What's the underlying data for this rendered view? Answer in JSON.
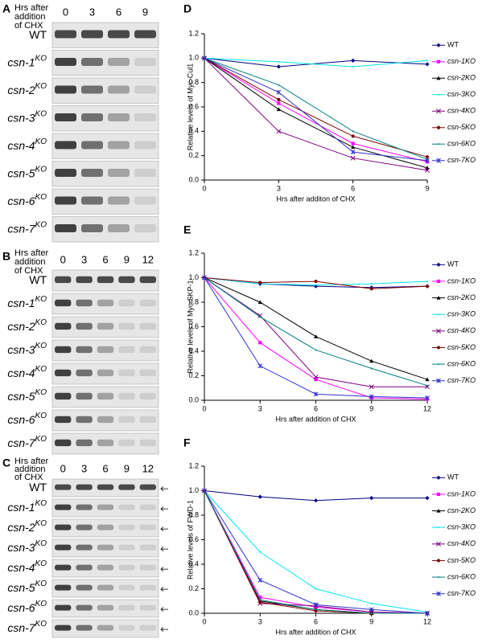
{
  "blots": [
    {
      "panel": "A",
      "header": [
        "Hrs after",
        "addition",
        "of CHX"
      ],
      "timepoints": [
        "0",
        "3",
        "6",
        "9"
      ],
      "rows": [
        {
          "name": "WT"
        },
        {
          "name": "csn-1",
          "sup": "KO"
        },
        {
          "name": "csn-2",
          "sup": "KO"
        },
        {
          "name": "csn-3",
          "sup": "KO"
        },
        {
          "name": "csn-4",
          "sup": "KO"
        },
        {
          "name": "csn-5",
          "sup": "KO"
        },
        {
          "name": "csn-6",
          "sup": "KO"
        },
        {
          "name": "csn-7",
          "sup": "KO"
        }
      ]
    },
    {
      "panel": "B",
      "header": [
        "Hrs after",
        "addition",
        "of CHX"
      ],
      "timepoints": [
        "0",
        "3",
        "6",
        "9",
        "12"
      ],
      "rows": [
        {
          "name": "WT"
        },
        {
          "name": "csn-1",
          "sup": "KO"
        },
        {
          "name": "csn-2",
          "sup": "KO"
        },
        {
          "name": "csn-3",
          "sup": "KO"
        },
        {
          "name": "csn-4",
          "sup": "KO"
        },
        {
          "name": "csn-5",
          "sup": "KO"
        },
        {
          "name": "csn-6",
          "sup": "KO"
        },
        {
          "name": "csn-7",
          "sup": "KO"
        }
      ]
    },
    {
      "panel": "C",
      "header": [
        "Hrs after",
        "addition",
        "of CHX"
      ],
      "timepoints": [
        "0",
        "3",
        "6",
        "9",
        "12"
      ],
      "rows": [
        {
          "name": "WT"
        },
        {
          "name": "csn-1",
          "sup": "KO"
        },
        {
          "name": "csn-2",
          "sup": "KO"
        },
        {
          "name": "csn-3",
          "sup": "KO"
        },
        {
          "name": "csn-4",
          "sup": "KO"
        },
        {
          "name": "csn-5",
          "sup": "KO"
        },
        {
          "name": "csn-6",
          "sup": "KO"
        },
        {
          "name": "csn-7",
          "sup": "KO"
        }
      ]
    }
  ],
  "chart_data": [
    {
      "type": "line",
      "panel": "D",
      "ylabel": "Relative levels of Myc-Cul1",
      "xlabel": "Hrs after additon of CHX",
      "x": [
        0,
        3,
        6,
        9
      ],
      "xlim": [
        0,
        9
      ],
      "xticks": [
        0,
        3,
        6,
        9
      ],
      "ylim": [
        0,
        1.2
      ],
      "yticks": [
        {
          "value": 0,
          "label": "0.0"
        },
        0.2,
        0.4,
        0.6,
        0.8,
        {
          "value": 1,
          "label": "1.0"
        },
        1.2
      ],
      "series": [
        {
          "name": "WT",
          "color": "#000080",
          "marker": "diamond",
          "values": [
            1.0,
            0.93,
            0.98,
            0.95
          ]
        },
        {
          "name": "csn-1KO",
          "color": "#ff00ff",
          "marker": "square",
          "values": [
            1.0,
            0.63,
            0.3,
            0.15
          ]
        },
        {
          "name": "csn-2KO",
          "color": "#000000",
          "marker": "triangle",
          "values": [
            1.0,
            0.58,
            0.27,
            0.1
          ]
        },
        {
          "name": "csn-3KO",
          "color": "#00e5ee",
          "marker": "none",
          "values": [
            1.0,
            0.97,
            0.93,
            0.98
          ]
        },
        {
          "name": "csn-4KO",
          "color": "#800080",
          "marker": "x",
          "values": [
            1.0,
            0.4,
            0.18,
            0.08
          ]
        },
        {
          "name": "csn-5KO",
          "color": "#800000",
          "marker": "circle",
          "values": [
            1.0,
            0.66,
            0.36,
            0.19
          ]
        },
        {
          "name": "csn-6KO",
          "color": "#008080",
          "marker": "none",
          "values": [
            1.0,
            0.78,
            0.4,
            0.17
          ]
        },
        {
          "name": "csn-7KO",
          "color": "#3333cc",
          "marker": "star",
          "values": [
            1.0,
            0.72,
            0.23,
            0.16
          ]
        }
      ]
    },
    {
      "type": "line",
      "panel": "E",
      "ylabel": "Relative levels of Myc-SKP-1",
      "xlabel": "Hrs after addition of CHX",
      "x": [
        0,
        3,
        6,
        9,
        12
      ],
      "xlim": [
        0,
        12
      ],
      "xticks": [
        0,
        3,
        6,
        9,
        12
      ],
      "ylim": [
        0,
        1.2
      ],
      "yticks": [
        {
          "value": 0,
          "label": "0.0"
        },
        0.2,
        0.4,
        0.6,
        0.8,
        {
          "value": 1,
          "label": "1.0"
        },
        1.2
      ],
      "series": [
        {
          "name": "WT",
          "color": "#000080",
          "marker": "diamond",
          "values": [
            1.0,
            0.95,
            0.93,
            0.92,
            0.93
          ]
        },
        {
          "name": "csn-1KO",
          "color": "#ff00ff",
          "marker": "square",
          "values": [
            1.0,
            0.47,
            0.17,
            0.02,
            0.01
          ]
        },
        {
          "name": "csn-2KO",
          "color": "#000000",
          "marker": "triangle",
          "values": [
            1.0,
            0.8,
            0.52,
            0.32,
            0.17
          ]
        },
        {
          "name": "csn-3KO",
          "color": "#00e5ee",
          "marker": "none",
          "values": [
            1.0,
            0.95,
            0.94,
            0.95,
            0.97
          ]
        },
        {
          "name": "csn-4KO",
          "color": "#800080",
          "marker": "x",
          "values": [
            1.0,
            0.69,
            0.19,
            0.11,
            0.11
          ]
        },
        {
          "name": "csn-5KO",
          "color": "#800000",
          "marker": "circle",
          "values": [
            1.0,
            0.96,
            0.97,
            0.91,
            0.93
          ]
        },
        {
          "name": "csn-6KO",
          "color": "#008080",
          "marker": "none",
          "values": [
            1.0,
            0.68,
            0.41,
            0.26,
            0.12
          ]
        },
        {
          "name": "csn-7KO",
          "color": "#3333cc",
          "marker": "star",
          "values": [
            1.0,
            0.28,
            0.05,
            0.03,
            0.02
          ]
        }
      ]
    },
    {
      "type": "line",
      "panel": "F",
      "ylabel": "Relative levels of FWD-1",
      "xlabel": "Hrs after addition of CHX",
      "x": [
        0,
        3,
        6,
        9,
        12
      ],
      "xlim": [
        0,
        12
      ],
      "xticks": [
        0,
        3,
        6,
        9,
        12
      ],
      "ylim": [
        0,
        1.2
      ],
      "yticks": [
        {
          "value": 0,
          "label": "0.0"
        },
        0.2,
        0.4,
        0.6,
        0.8,
        {
          "value": 1,
          "label": "1.0"
        },
        1.2
      ],
      "series": [
        {
          "name": "WT",
          "color": "#000080",
          "marker": "diamond",
          "values": [
            1.0,
            0.95,
            0.92,
            0.94,
            0.94
          ]
        },
        {
          "name": "csn-1KO",
          "color": "#ff00ff",
          "marker": "square",
          "values": [
            1.0,
            0.13,
            0.05,
            0.01,
            0.0
          ]
        },
        {
          "name": "csn-2KO",
          "color": "#000000",
          "marker": "triangle",
          "values": [
            1.0,
            0.1,
            0.03,
            0.0,
            0.0
          ]
        },
        {
          "name": "csn-3KO",
          "color": "#00e5ee",
          "marker": "none",
          "values": [
            1.0,
            0.5,
            0.2,
            0.08,
            0.01
          ]
        },
        {
          "name": "csn-4KO",
          "color": "#800080",
          "marker": "x",
          "values": [
            1.0,
            0.08,
            0.06,
            0.01,
            0.0
          ]
        },
        {
          "name": "csn-5KO",
          "color": "#800000",
          "marker": "circle",
          "values": [
            1.0,
            0.09,
            0.02,
            0.0,
            0.0
          ]
        },
        {
          "name": "csn-6KO",
          "color": "#008080",
          "marker": "none",
          "values": [
            1.0,
            0.11,
            0.03,
            0.0,
            0.0
          ]
        },
        {
          "name": "csn-7KO",
          "color": "#3333cc",
          "marker": "star",
          "values": [
            1.0,
            0.27,
            0.07,
            0.03,
            0.0
          ]
        }
      ]
    }
  ]
}
